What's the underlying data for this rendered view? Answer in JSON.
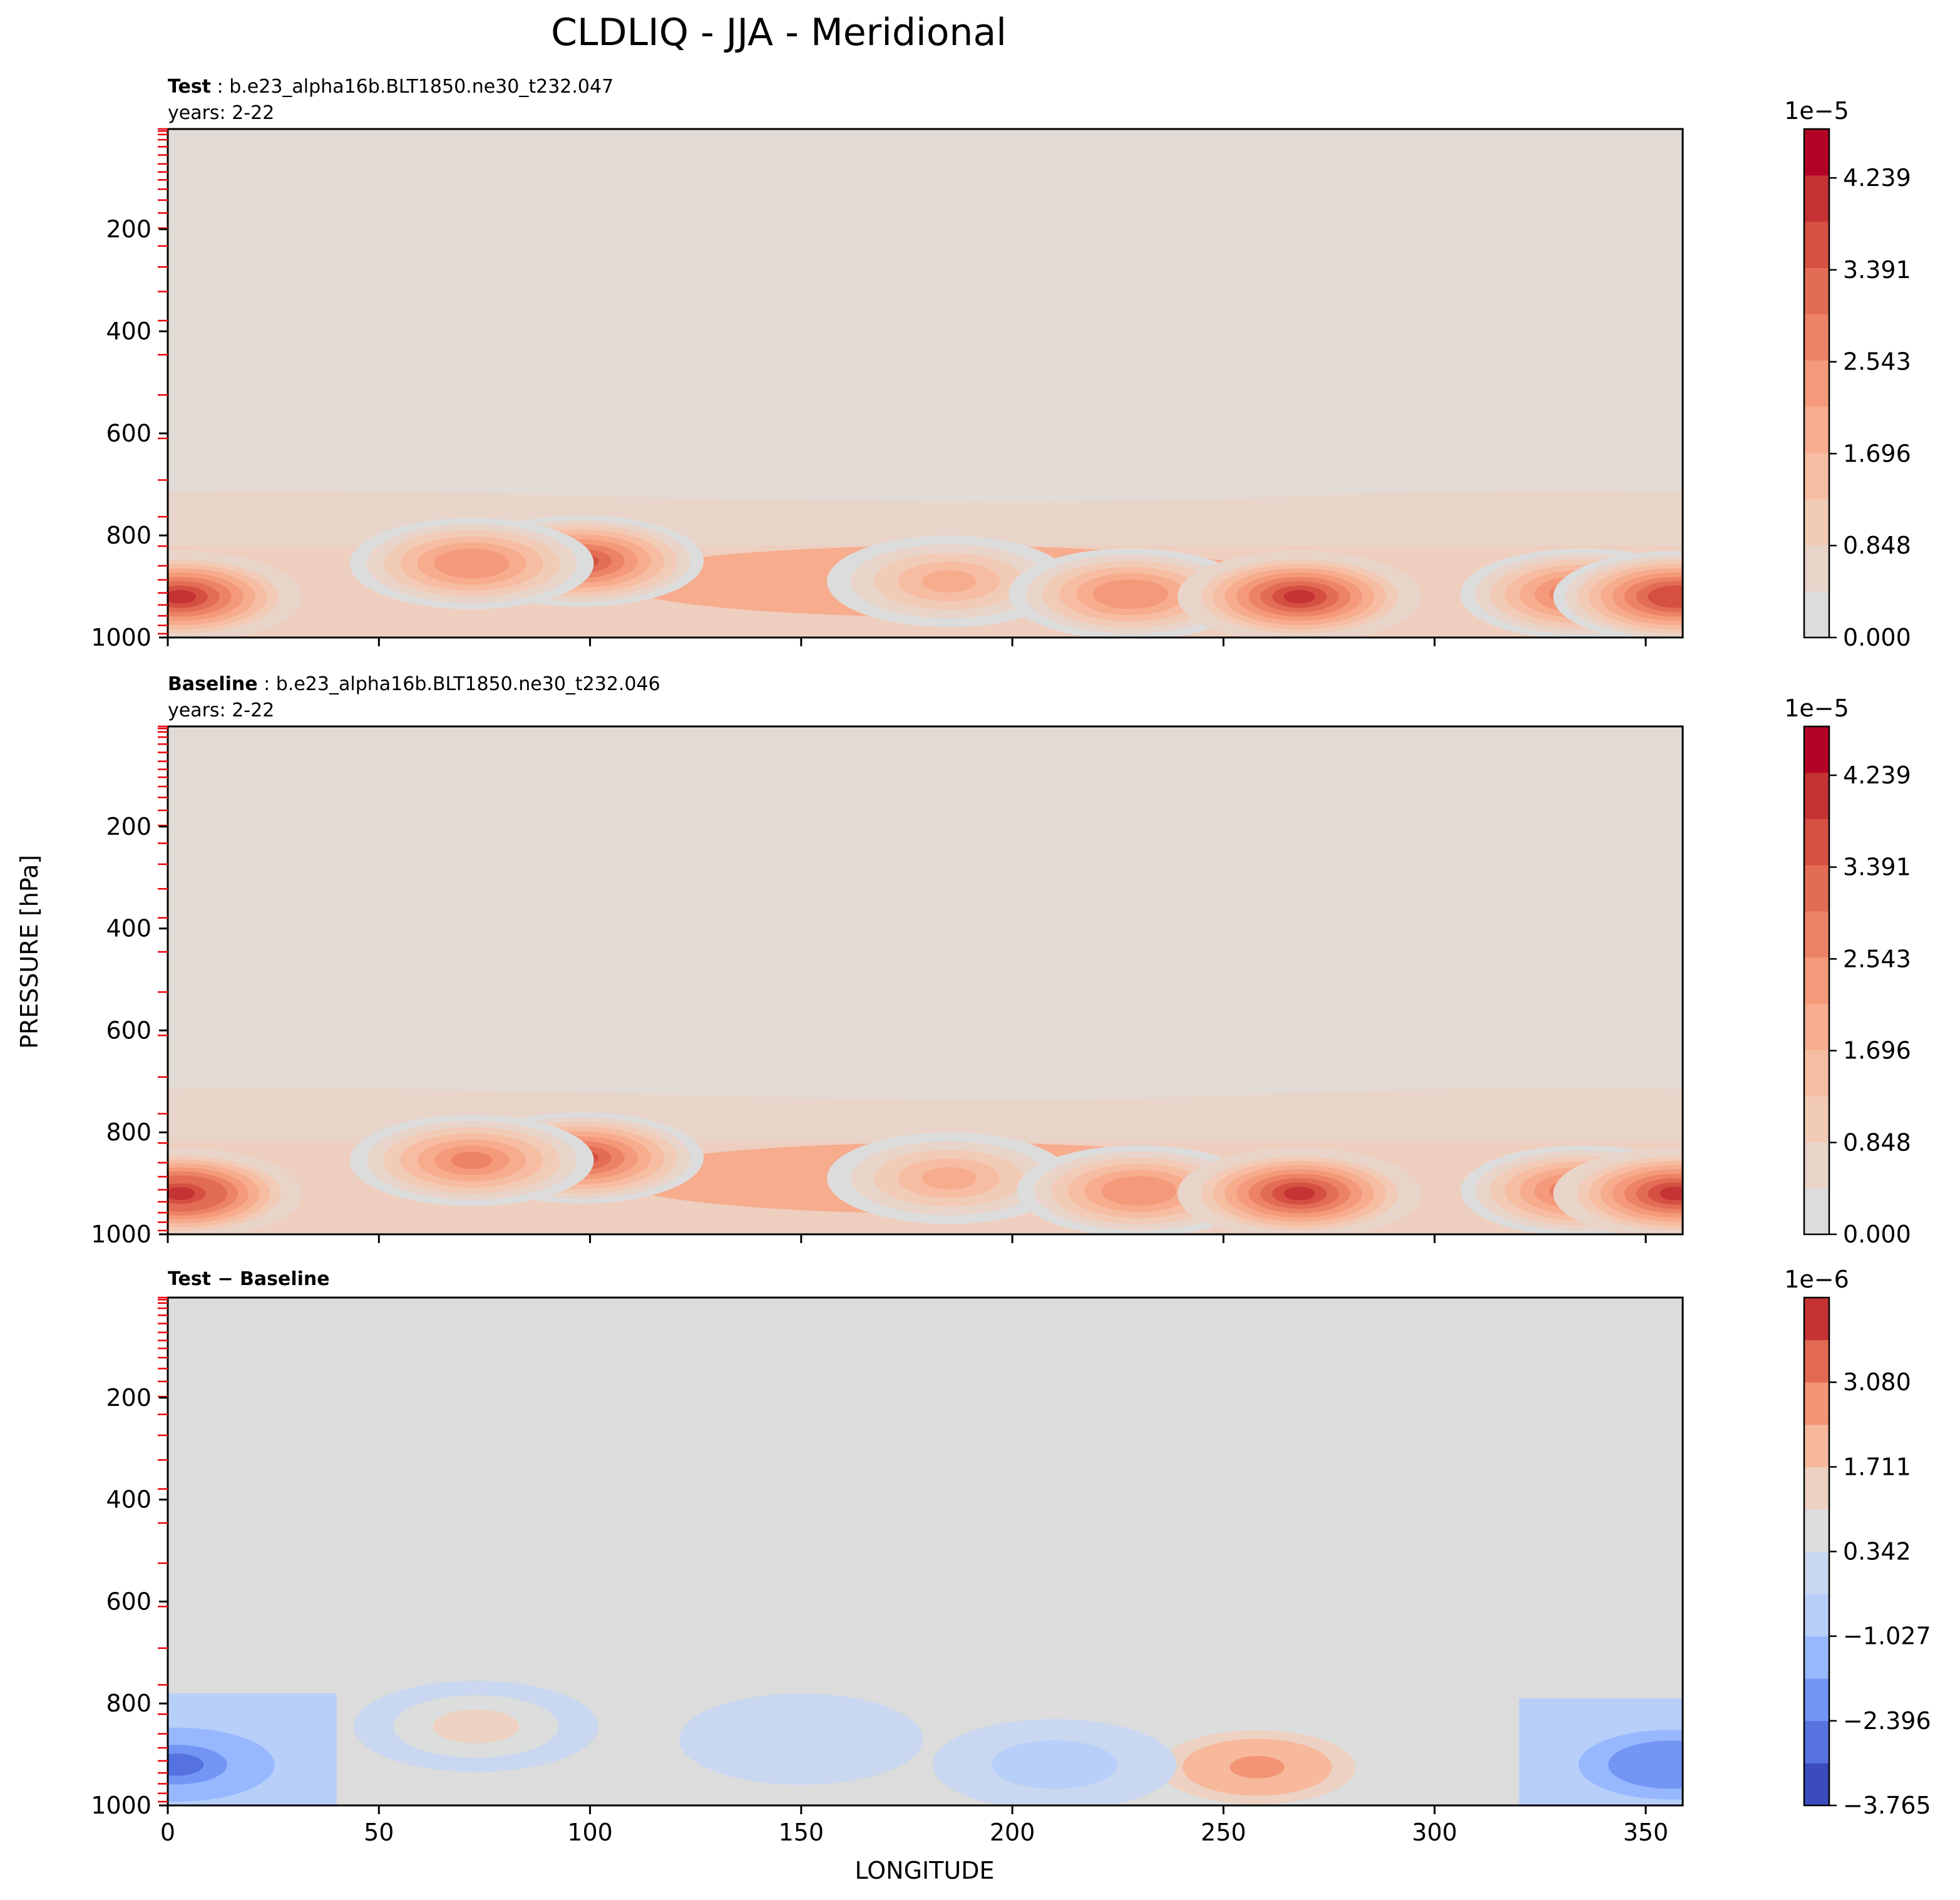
{
  "figure": {
    "title": "CLDLIQ - JJA - Meridional",
    "ylabel": "PRESSURE [hPa]",
    "xlabel": "LONGITUDE"
  },
  "colors": {
    "levels": [
      "#dddcdc",
      "#e9d4ca",
      "#f2cbb7",
      "#f6bda2",
      "#f7ac8e",
      "#f49a7b",
      "#ed8366",
      "#e36c55",
      "#d55042",
      "#c53334",
      "#b40426"
    ],
    "diff_levels": [
      "#3b4cc0",
      "#5572df",
      "#7396f5",
      "#97b8ff",
      "#b7cff9",
      "#c9d7f0",
      "#dcdddd",
      "#edd1c2",
      "#f7b89c",
      "#f39475",
      "#e26952",
      "#c53334"
    ],
    "background": "#e2dbd5",
    "diff_background": "#dcdcdc"
  },
  "chart_data": [
    {
      "type": "contour",
      "label_bold": "Test",
      "label_rest": ": b.e23_alpha16b.BLT1850.ne30_t232.047",
      "years": "years: 2-22",
      "x_range": [
        0,
        358.75
      ],
      "y_range": [
        1000,
        3.6
      ],
      "x_ticks": [
        0,
        50,
        100,
        150,
        200,
        250,
        300,
        350
      ],
      "y_ticks": [
        200,
        400,
        600,
        800,
        1000
      ],
      "model_levels_hPa": [
        3.6,
        7.6,
        14.4,
        24.6,
        38.3,
        54.6,
        72.0,
        87.8,
        103.3,
        121.5,
        142.9,
        168.2,
        197.9,
        232.8,
        273.9,
        322.2,
        379.1,
        445.9,
        524.7,
        609.8,
        691.4,
        763.4,
        820.9,
        859.5,
        887.0,
        912.6,
        936.2,
        957.5,
        976.3,
        992.6
      ],
      "colorbar": {
        "scale_label": "1e−5",
        "tick_values": [
          0.0,
          0.848,
          1.696,
          2.543,
          3.391,
          4.239
        ],
        "tick_labels": [
          "0.000",
          "0.848",
          "1.696",
          "2.543",
          "3.391",
          "4.239"
        ],
        "range": [
          0,
          4.69
        ]
      },
      "features": [
        {
          "lon": 3,
          "p": 920,
          "value": 4.4
        },
        {
          "lon": 98,
          "p": 850,
          "value": 3.8
        },
        {
          "lon": 72,
          "p": 855,
          "value": 2.9
        },
        {
          "lon": 185,
          "p": 890,
          "value": 2.1
        },
        {
          "lon": 228,
          "p": 915,
          "value": 2.9
        },
        {
          "lon": 268,
          "p": 920,
          "value": 4.4
        },
        {
          "lon": 335,
          "p": 915,
          "value": 3.4
        },
        {
          "lon": 357,
          "p": 920,
          "value": 4.2
        }
      ]
    },
    {
      "type": "contour",
      "label_bold": "Baseline",
      "label_rest": ": b.e23_alpha16b.BLT1850.ne30_t232.046",
      "years": "years: 2-22",
      "x_range": [
        0,
        358.75
      ],
      "y_range": [
        1000,
        3.6
      ],
      "x_ticks": [
        0,
        50,
        100,
        150,
        200,
        250,
        300,
        350
      ],
      "y_ticks": [
        200,
        400,
        600,
        800,
        1000
      ],
      "model_levels_hPa": [
        3.6,
        7.6,
        14.4,
        24.6,
        38.3,
        54.6,
        72.0,
        87.8,
        103.3,
        121.5,
        142.9,
        168.2,
        197.9,
        232.8,
        273.9,
        322.2,
        379.1,
        445.9,
        524.7,
        609.8,
        691.4,
        763.4,
        820.9,
        859.5,
        887.0,
        912.6,
        936.2,
        957.5,
        976.3,
        992.6
      ],
      "colorbar": {
        "scale_label": "1e−5",
        "tick_values": [
          0.0,
          0.848,
          1.696,
          2.543,
          3.391,
          4.239
        ],
        "tick_labels": [
          "0.000",
          "0.848",
          "1.696",
          "2.543",
          "3.391",
          "4.239"
        ],
        "range": [
          0,
          4.69
        ]
      },
      "features": [
        {
          "lon": 3,
          "p": 920,
          "value": 4.5
        },
        {
          "lon": 98,
          "p": 850,
          "value": 3.9
        },
        {
          "lon": 72,
          "p": 855,
          "value": 3.0
        },
        {
          "lon": 185,
          "p": 890,
          "value": 2.1
        },
        {
          "lon": 230,
          "p": 915,
          "value": 2.9
        },
        {
          "lon": 268,
          "p": 920,
          "value": 4.3
        },
        {
          "lon": 335,
          "p": 915,
          "value": 3.4
        },
        {
          "lon": 357,
          "p": 920,
          "value": 4.3
        }
      ]
    },
    {
      "type": "contour",
      "label_bold": "Test − Baseline",
      "label_rest": "",
      "years": "",
      "x_range": [
        0,
        358.75
      ],
      "y_range": [
        1000,
        3.6
      ],
      "x_ticks": [
        0,
        50,
        100,
        150,
        200,
        250,
        300,
        350
      ],
      "y_ticks": [
        200,
        400,
        600,
        800,
        1000
      ],
      "model_levels_hPa": [
        3.6,
        7.6,
        14.4,
        24.6,
        38.3,
        54.6,
        72.0,
        87.8,
        103.3,
        121.5,
        142.9,
        168.2,
        197.9,
        232.8,
        273.9,
        322.2,
        379.1,
        445.9,
        524.7,
        609.8,
        691.4,
        763.4,
        820.9,
        859.5,
        887.0,
        912.6,
        936.2,
        957.5,
        976.3,
        992.6
      ],
      "colorbar": {
        "scale_label": "1e−6",
        "tick_values": [
          -3.765,
          -2.396,
          -1.027,
          0.342,
          1.711,
          3.08
        ],
        "tick_labels": [
          "−3.765",
          "−2.396",
          "−1.027",
          "0.342",
          "1.711",
          "3.080"
        ],
        "range": [
          -3.765,
          4.45
        ]
      },
      "features": [
        {
          "lon": 2,
          "p": 920,
          "value": -3.3
        },
        {
          "lon": 356,
          "p": 920,
          "value": -3.0
        },
        {
          "lon": 73,
          "p": 845,
          "value": 1.8
        },
        {
          "lon": 258,
          "p": 925,
          "value": 3.6
        },
        {
          "lon": 150,
          "p": 870,
          "value": 0.9
        },
        {
          "lon": 210,
          "p": 920,
          "value": -1.3
        }
      ]
    }
  ]
}
